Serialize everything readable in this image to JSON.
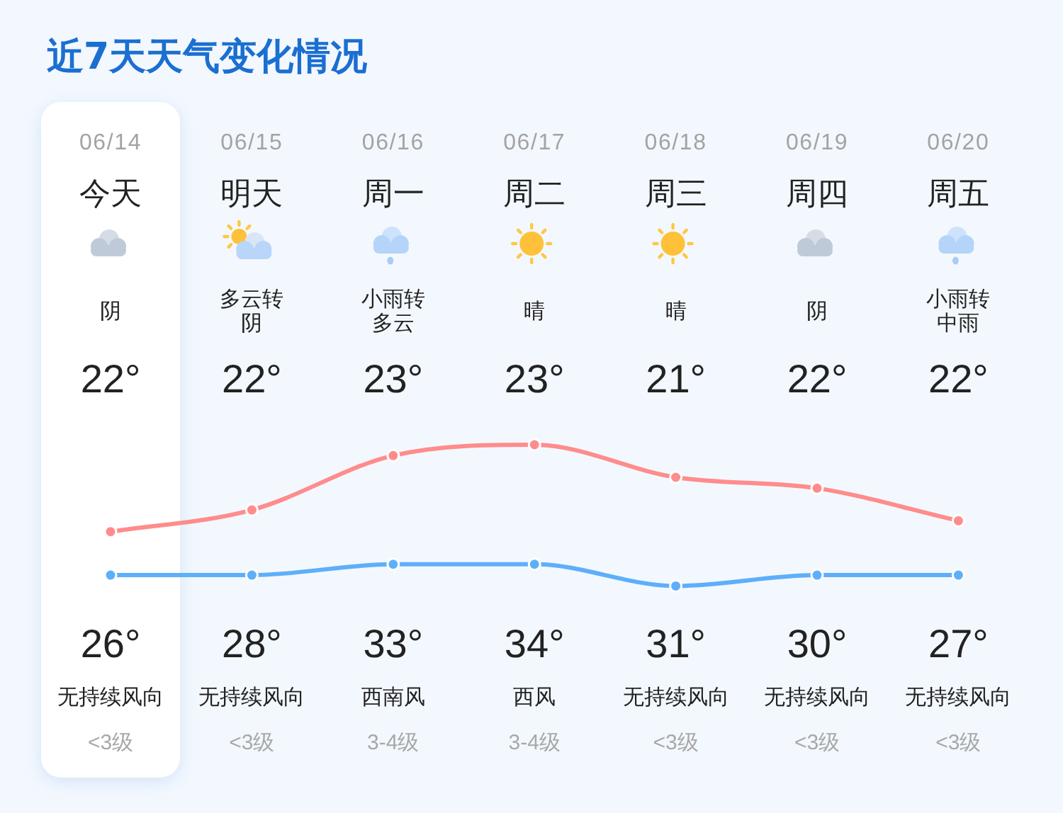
{
  "chart_data": {
    "type": "line",
    "title": "近7天天气变化情况",
    "categories": [
      "今天",
      "明天",
      "周一",
      "周二",
      "周三",
      "周四",
      "周五"
    ],
    "series": [
      {
        "color": "#5eaffa",
        "values": [
          22,
          22,
          23,
          23,
          21,
          22,
          22
        ],
        "value_labels": [
          "22°",
          "22°",
          "23°",
          "23°",
          "21°",
          "22°",
          "22°"
        ]
      },
      {
        "color": "#ff8c8c",
        "values": [
          26,
          28,
          33,
          34,
          31,
          30,
          27
        ],
        "value_labels": [
          "26°",
          "28°",
          "33°",
          "34°",
          "31°",
          "30°",
          "27°"
        ]
      }
    ],
    "marker": "circle",
    "bands": [
      {
        "axis": "x",
        "from": "今天",
        "to": "今天",
        "color": "#ffffff"
      }
    ],
    "annotations": [
      "06/14",
      "06/15",
      "06/16",
      "06/17",
      "06/18",
      "06/19",
      "06/20",
      "阴",
      "多云转阴",
      "小雨转多云",
      "晴",
      "晴",
      "阴",
      "小雨转中雨",
      "无持续风向",
      "无持续风向",
      "西南风",
      "西风",
      "无持续风向",
      "无持续风向",
      "无持续风向",
      "<3级",
      "<3级",
      "3-4级",
      "3-4级",
      "<3级",
      "<3级",
      "<3级"
    ]
  }
}
